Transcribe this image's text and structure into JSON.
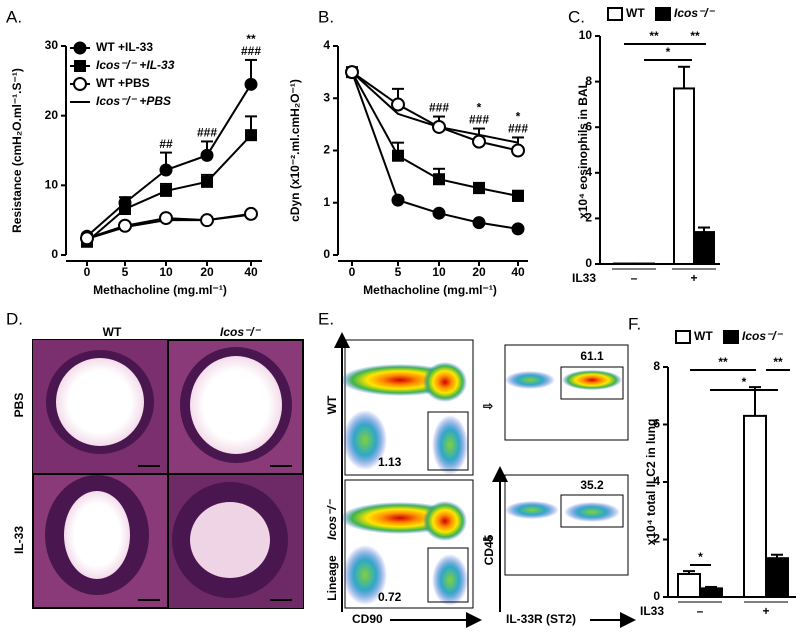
{
  "chart_data": [
    {
      "type": "line",
      "label": "A.",
      "y_label": "Resistance (cmH₂O.ml⁻¹.S⁻¹)",
      "x_label": "Methacholine (mg.ml⁻¹)",
      "categories": [
        "0",
        "5",
        "10",
        "20",
        "40"
      ],
      "ylim": [
        0,
        30
      ],
      "yticks": [
        0,
        10,
        20,
        30
      ],
      "legend": "upper left",
      "series": [
        {
          "name": "WT +IL-33",
          "color": "#000000",
          "marker": "circle",
          "values": [
            2.7,
            7.5,
            12.2,
            14.3,
            24.5
          ],
          "errors": [
            0.3,
            0.8,
            2.5,
            2.0,
            3.5
          ]
        },
        {
          "name": "Icos⁻/⁻ +IL-33",
          "color": "#000000",
          "marker": "square",
          "font_style": "italic",
          "values": [
            1.9,
            6.6,
            9.2,
            10.5,
            17.2
          ],
          "errors": [
            0.2,
            0.5,
            1.0,
            1.0,
            2.7
          ]
        },
        {
          "name": "WT +PBS",
          "color": "#000000",
          "marker": "open-circle",
          "values": [
            2.4,
            4.2,
            5.3,
            5.0,
            5.9
          ],
          "errors": [
            0.2,
            0.4,
            0.3,
            0.4,
            0.4
          ]
        },
        {
          "name": "Icos⁻/⁻ +PBS",
          "color": "#000000",
          "marker": "none",
          "font_style": "italic",
          "values": [
            2.3,
            4.0,
            5.0,
            5.0,
            5.8
          ]
        }
      ],
      "annotations": [
        {
          "category": "10",
          "lines": [
            "##"
          ]
        },
        {
          "category": "20",
          "lines": [
            "###"
          ]
        },
        {
          "category": "40",
          "lines": [
            "**",
            "###"
          ]
        }
      ]
    },
    {
      "type": "line",
      "label": "B.",
      "y_label": "cDyn (x10⁻².ml.cmH₂O⁻¹)",
      "x_label": "Methacholine (mg.ml⁻¹)",
      "categories": [
        "0",
        "5",
        "10",
        "20",
        "40"
      ],
      "ylim": [
        0,
        4
      ],
      "yticks": [
        0,
        1,
        2,
        3,
        4
      ],
      "series": [
        {
          "color": "#000000",
          "marker": "circle",
          "values": [
            3.5,
            1.05,
            0.8,
            0.62,
            0.5
          ]
        },
        {
          "color": "#000000",
          "marker": "square",
          "values": [
            3.5,
            1.9,
            1.45,
            1.28,
            1.13
          ],
          "errors": [
            0.05,
            0.25,
            0.2,
            0.1,
            0.1
          ]
        },
        {
          "color": "#000000",
          "marker": "open-circle",
          "values": [
            3.5,
            2.88,
            2.45,
            2.17,
            2.0
          ],
          "errors": [
            0.05,
            0.3,
            0.2,
            0.25,
            0.25
          ]
        },
        {
          "color": "#000000",
          "marker": "none",
          "values": [
            3.5,
            2.7,
            2.45,
            2.3,
            2.15
          ]
        }
      ],
      "annotations": [
        {
          "category": "10",
          "lines": [
            "###"
          ]
        },
        {
          "category": "20",
          "lines": [
            "*",
            "###"
          ]
        },
        {
          "category": "40",
          "lines": [
            "*",
            "###"
          ]
        }
      ]
    },
    {
      "type": "bar",
      "label": "C.",
      "y_label": "x10⁴ eosinophils in BAL",
      "category_title": "IL33",
      "categories": [
        "–",
        "+"
      ],
      "ylim": [
        0,
        10
      ],
      "yticks": [
        0,
        2,
        4,
        6,
        8,
        10
      ],
      "legend": "top",
      "series": [
        {
          "name": "WT",
          "color": "#ffffff",
          "values": [
            0.02,
            7.7
          ],
          "errors": [
            0,
            0.95
          ]
        },
        {
          "name": "Icos⁻/⁻",
          "color": "#000000",
          "font_style": "italic",
          "values": [
            0.02,
            1.4
          ],
          "errors": [
            0,
            0.2
          ]
        }
      ],
      "significance": [
        "**",
        "*",
        "**"
      ]
    },
    {
      "type": "bar",
      "label": "F.",
      "y_label": "x10⁴ total ILC2 in lung",
      "category_title": "IL33",
      "categories": [
        "–",
        "+"
      ],
      "ylim": [
        0,
        8
      ],
      "yticks": [
        0,
        2,
        4,
        6,
        8
      ],
      "legend": "top",
      "series": [
        {
          "name": "WT",
          "color": "#ffffff",
          "values": [
            0.8,
            6.3
          ],
          "errors": [
            0.1,
            1.0
          ]
        },
        {
          "name": "Icos⁻/⁻",
          "color": "#000000",
          "font_style": "italic",
          "values": [
            0.3,
            1.35
          ],
          "errors": [
            0.05,
            0.12
          ]
        }
      ],
      "significance": [
        "*",
        "**",
        "*",
        "**"
      ]
    }
  ],
  "histology": {
    "label": "D.",
    "columns": [
      "WT",
      "Icos⁻/⁻"
    ],
    "rows": [
      "PBS",
      "IL-33"
    ]
  },
  "flow": {
    "label": "E.",
    "rows": [
      "WT",
      "Icos⁻/⁻"
    ],
    "x_left": "CD90",
    "y_left": "Lineage",
    "x_right": "IL-33R (ST2)",
    "y_right": "CD45",
    "gate_left": [
      "1.13",
      "0.72"
    ],
    "gate_right": [
      "61.1",
      "35.2"
    ]
  }
}
